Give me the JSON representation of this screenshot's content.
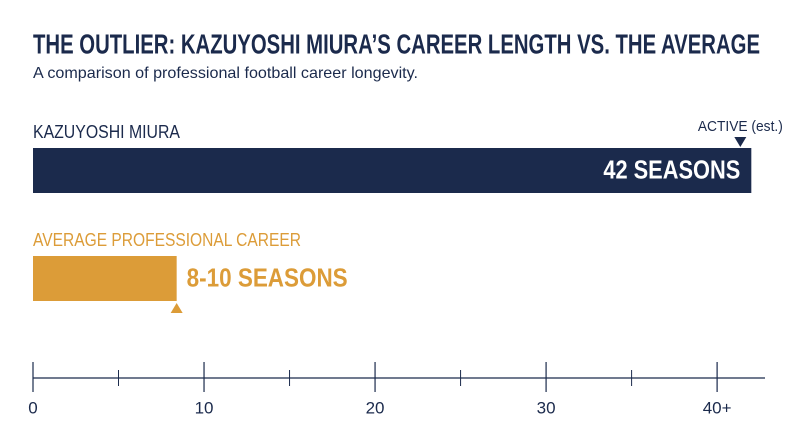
{
  "chart_data": {
    "type": "bar",
    "orientation": "horizontal",
    "title": "THE OUTLIER: KAZUYOSHI MIURA’S CAREER LENGTH VS. THE AVERAGE",
    "subtitle": "A comparison of professional football career longevity.",
    "categories": [
      "KAZUYOSHI MIURA",
      "AVERAGE PROFESSIONAL CAREER"
    ],
    "values": [
      42,
      8.4
    ],
    "value_labels": [
      "42 SEASONS",
      "8-10 SEASONS"
    ],
    "colors": [
      "#1b2a4c",
      "#dc9c38"
    ],
    "annotation": "ACTIVE (est.)",
    "xlim": [
      0,
      42.8
    ],
    "xticks": [
      0,
      10,
      20,
      30,
      {
        "value": 40,
        "label": "40+"
      }
    ],
    "minor_xticks": [
      5,
      15,
      25,
      35
    ]
  }
}
